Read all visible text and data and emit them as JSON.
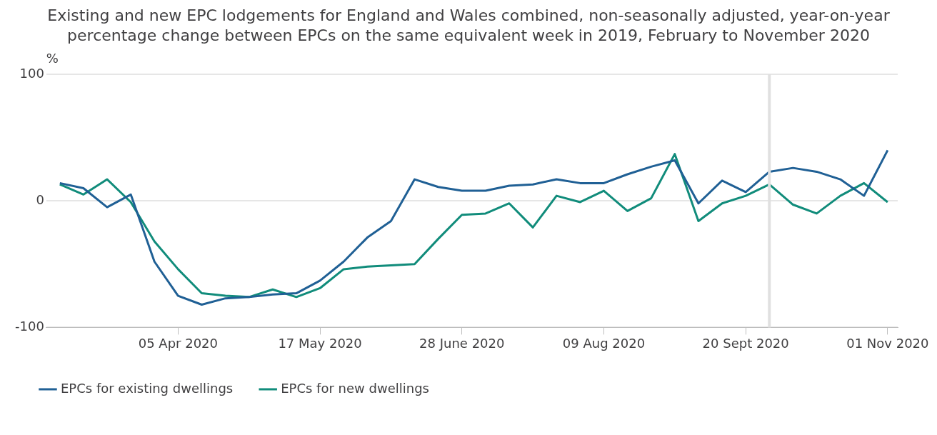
{
  "chart_data": {
    "type": "line",
    "title": "Existing and new EPC lodgements for England and Wales combined, non-seasonally adjusted, year-on-year percentage change between EPCs on the same equivalent week in 2019, February to November 2020",
    "ylabel": "%",
    "x": [
      "2020-03-01",
      "2020-03-08",
      "2020-03-15",
      "2020-03-22",
      "2020-03-29",
      "2020-04-05",
      "2020-04-12",
      "2020-04-19",
      "2020-04-26",
      "2020-05-03",
      "2020-05-10",
      "2020-05-17",
      "2020-05-24",
      "2020-05-31",
      "2020-06-07",
      "2020-06-14",
      "2020-06-21",
      "2020-06-28",
      "2020-07-05",
      "2020-07-12",
      "2020-07-19",
      "2020-07-26",
      "2020-08-02",
      "2020-08-09",
      "2020-08-16",
      "2020-08-23",
      "2020-08-30",
      "2020-09-06",
      "2020-09-13",
      "2020-09-20",
      "2020-09-27",
      "2020-10-04",
      "2020-10-11",
      "2020-10-18",
      "2020-10-25",
      "2020-11-01"
    ],
    "series": [
      {
        "name": "EPCs for existing dwellings",
        "color": "#206095",
        "values": [
          14,
          10,
          -5,
          5,
          -48,
          -75,
          -82,
          -77,
          -76,
          -74,
          -73,
          -63,
          -48,
          -29,
          -16,
          17,
          11,
          8,
          8,
          12,
          13,
          17,
          14,
          14,
          21,
          27,
          32,
          -2,
          16,
          7,
          23,
          26,
          23,
          17,
          4,
          40
        ]
      },
      {
        "name": "EPCs for new dwellings",
        "color": "#118c7b",
        "values": [
          13,
          5,
          17,
          -1,
          -32,
          -54,
          -73,
          -75,
          -76,
          -70,
          -76,
          -69,
          -54,
          -52,
          -51,
          -50,
          -30,
          -11,
          -10,
          -2,
          -21,
          4,
          -1,
          8,
          -8,
          2,
          37,
          -16,
          -2,
          4,
          13,
          -3,
          -10,
          4,
          14,
          -1
        ]
      }
    ],
    "xlim": [
      "2020-02-26",
      "2020-11-04"
    ],
    "xticks": [
      {
        "value": "2020-04-05",
        "label": "05 Apr 2020"
      },
      {
        "value": "2020-05-17",
        "label": "17 May 2020"
      },
      {
        "value": "2020-06-28",
        "label": "28 June 2020"
      },
      {
        "value": "2020-08-09",
        "label": "09 Aug 2020"
      },
      {
        "value": "2020-09-20",
        "label": "20 Sept 2020"
      },
      {
        "value": "2020-11-01",
        "label": "01 Nov 2020"
      }
    ],
    "ylim": [
      -100,
      100
    ],
    "yticks": [
      -100,
      0,
      100
    ],
    "ref_lines": [
      {
        "axis": "x",
        "value": "2020-09-27",
        "color": "#e0e0e0"
      }
    ],
    "grid": "y",
    "legend": "bottom",
    "marker": "none",
    "line_style": "solid"
  }
}
